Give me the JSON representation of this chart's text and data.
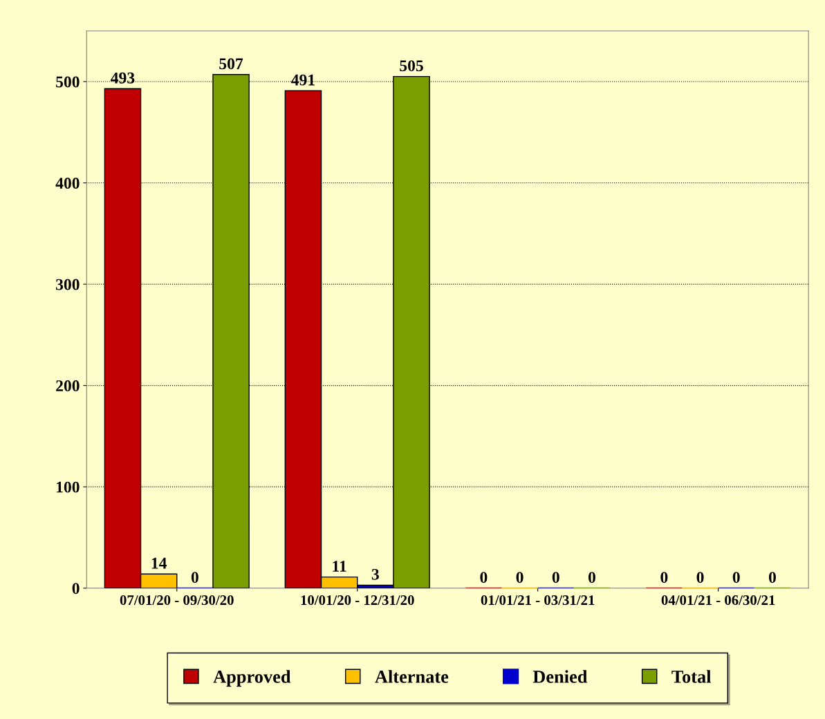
{
  "chart_data": {
    "type": "bar",
    "categories": [
      "07/01/20 - 09/30/20",
      "10/01/20 - 12/31/20",
      "01/01/21 - 03/31/21",
      "04/01/21 - 06/30/21"
    ],
    "series": [
      {
        "name": "Approved",
        "color": "#c00000",
        "values": [
          493,
          491,
          0,
          0
        ]
      },
      {
        "name": "Alternate",
        "color": "#ffc000",
        "values": [
          14,
          11,
          0,
          0
        ]
      },
      {
        "name": "Denied",
        "color": "#0000cc",
        "values": [
          0,
          3,
          0,
          0
        ]
      },
      {
        "name": "Total",
        "color": "#7a9e00",
        "values": [
          507,
          505,
          0,
          0
        ]
      }
    ],
    "ylim": [
      0,
      550
    ],
    "yticks": [
      0,
      100,
      200,
      300,
      400,
      500
    ],
    "grid": "y",
    "legend": "bottom",
    "data_labels": true
  }
}
